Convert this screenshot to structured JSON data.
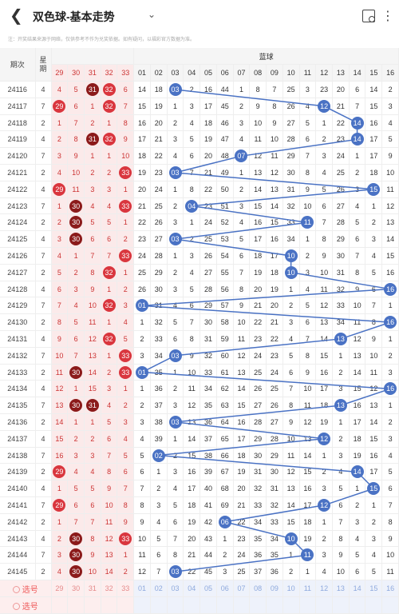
{
  "header": {
    "title": "双色球-基本走势",
    "back_icon": "back-icon",
    "share_icon": "share-icon",
    "more_icon": "more-icon"
  },
  "notice": "注：开奖结果来源于网络，仅供参考不作为兑奖依据。如有疑问，以福彩官方数据为准。",
  "columns": {
    "period": "期次",
    "week": "星期",
    "red": [
      "29",
      "30",
      "31",
      "32",
      "33"
    ],
    "blue_label": "蓝球",
    "blue": [
      "01",
      "02",
      "03",
      "04",
      "05",
      "06",
      "07",
      "08",
      "09",
      "10",
      "11",
      "12",
      "13",
      "14",
      "15",
      "16"
    ]
  },
  "rows": [
    {
      "p": "24116",
      "w": "4",
      "r": [
        "4",
        "5",
        "31",
        "32",
        "6"
      ],
      "b": [
        "14",
        "18",
        "03",
        "2",
        "16",
        "44",
        "1",
        "8",
        "7",
        "25",
        "3",
        "23",
        "20",
        "6",
        "14",
        "2"
      ],
      "hr": [
        2,
        3
      ],
      "hb": 3
    },
    {
      "p": "24117",
      "w": "7",
      "r": [
        "29",
        "6",
        "1",
        "32",
        "7"
      ],
      "b": [
        "15",
        "19",
        "1",
        "3",
        "17",
        "45",
        "2",
        "9",
        "8",
        "26",
        "4",
        "12",
        "21",
        "7",
        "15",
        "3"
      ],
      "hr": [
        0,
        3
      ],
      "hb": 12
    },
    {
      "p": "24118",
      "w": "2",
      "r": [
        "1",
        "7",
        "2",
        "1",
        "8"
      ],
      "b": [
        "16",
        "20",
        "2",
        "4",
        "18",
        "46",
        "3",
        "10",
        "9",
        "27",
        "5",
        "1",
        "22",
        "14",
        "16",
        "4"
      ],
      "hr": [],
      "hb": 14
    },
    {
      "p": "24119",
      "w": "4",
      "r": [
        "2",
        "8",
        "31",
        "32",
        "9"
      ],
      "b": [
        "17",
        "21",
        "3",
        "5",
        "19",
        "47",
        "4",
        "11",
        "10",
        "28",
        "6",
        "2",
        "23",
        "14",
        "17",
        "5"
      ],
      "hr": [
        2,
        3
      ],
      "hb": 14
    },
    {
      "p": "24120",
      "w": "7",
      "r": [
        "3",
        "9",
        "1",
        "1",
        "10"
      ],
      "b": [
        "18",
        "22",
        "4",
        "6",
        "20",
        "48",
        "07",
        "12",
        "11",
        "29",
        "7",
        "3",
        "24",
        "1",
        "17",
        "9"
      ],
      "hr": [],
      "hb": 7
    },
    {
      "p": "24121",
      "w": "2",
      "r": [
        "4",
        "10",
        "2",
        "2",
        "33"
      ],
      "b": [
        "19",
        "23",
        "03",
        "7",
        "21",
        "49",
        "1",
        "13",
        "12",
        "30",
        "8",
        "4",
        "25",
        "2",
        "18",
        "10"
      ],
      "hr": [
        4
      ],
      "hb": 3
    },
    {
      "p": "24122",
      "w": "4",
      "r": [
        "29",
        "11",
        "3",
        "3",
        "1"
      ],
      "b": [
        "20",
        "24",
        "1",
        "8",
        "22",
        "50",
        "2",
        "14",
        "13",
        "31",
        "9",
        "5",
        "26",
        "3",
        "15",
        "11"
      ],
      "hr": [
        0
      ],
      "hb": 15
    },
    {
      "p": "24123",
      "w": "7",
      "r": [
        "1",
        "30",
        "4",
        "4",
        "33"
      ],
      "b": [
        "21",
        "25",
        "2",
        "04",
        "23",
        "51",
        "3",
        "15",
        "14",
        "32",
        "10",
        "6",
        "27",
        "4",
        "1",
        "12"
      ],
      "hr": [
        1,
        4
      ],
      "hb": 4
    },
    {
      "p": "24124",
      "w": "2",
      "r": [
        "2",
        "30",
        "5",
        "5",
        "1"
      ],
      "b": [
        "22",
        "26",
        "3",
        "1",
        "24",
        "52",
        "4",
        "16",
        "15",
        "33",
        "11",
        "7",
        "28",
        "5",
        "2",
        "13"
      ],
      "hr": [
        1
      ],
      "hb": 11
    },
    {
      "p": "24125",
      "w": "4",
      "r": [
        "3",
        "30",
        "6",
        "6",
        "2"
      ],
      "b": [
        "23",
        "27",
        "03",
        "2",
        "25",
        "53",
        "5",
        "17",
        "16",
        "34",
        "1",
        "8",
        "29",
        "6",
        "3",
        "14"
      ],
      "hr": [
        1
      ],
      "hb": 3
    },
    {
      "p": "24126",
      "w": "7",
      "r": [
        "4",
        "1",
        "7",
        "7",
        "33"
      ],
      "b": [
        "24",
        "28",
        "1",
        "3",
        "26",
        "54",
        "6",
        "18",
        "17",
        "10",
        "2",
        "9",
        "30",
        "7",
        "4",
        "15"
      ],
      "hr": [
        4
      ],
      "hb": 10
    },
    {
      "p": "24127",
      "w": "2",
      "r": [
        "5",
        "2",
        "8",
        "32",
        "1"
      ],
      "b": [
        "25",
        "29",
        "2",
        "4",
        "27",
        "55",
        "7",
        "19",
        "18",
        "10",
        "3",
        "10",
        "31",
        "8",
        "5",
        "16"
      ],
      "hr": [
        3
      ],
      "hb": 10
    },
    {
      "p": "24128",
      "w": "4",
      "r": [
        "6",
        "3",
        "9",
        "1",
        "2"
      ],
      "b": [
        "26",
        "30",
        "3",
        "5",
        "28",
        "56",
        "8",
        "20",
        "19",
        "1",
        "4",
        "11",
        "32",
        "9",
        "6",
        "16"
      ],
      "hr": [],
      "hb": 16
    },
    {
      "p": "24129",
      "w": "7",
      "r": [
        "7",
        "4",
        "10",
        "32",
        "3"
      ],
      "b": [
        "01",
        "31",
        "4",
        "6",
        "29",
        "57",
        "9",
        "21",
        "20",
        "2",
        "5",
        "12",
        "33",
        "10",
        "7",
        "1"
      ],
      "hr": [
        3
      ],
      "hb": 1
    },
    {
      "p": "24130",
      "w": "2",
      "r": [
        "8",
        "5",
        "11",
        "1",
        "4"
      ],
      "b": [
        "1",
        "32",
        "5",
        "7",
        "30",
        "58",
        "10",
        "22",
        "21",
        "3",
        "6",
        "13",
        "34",
        "11",
        "8",
        "16"
      ],
      "hr": [],
      "hb": 16
    },
    {
      "p": "24131",
      "w": "4",
      "r": [
        "9",
        "6",
        "12",
        "32",
        "5"
      ],
      "b": [
        "2",
        "33",
        "6",
        "8",
        "31",
        "59",
        "11",
        "23",
        "22",
        "4",
        "7",
        "14",
        "13",
        "12",
        "9",
        "1"
      ],
      "hr": [
        3
      ],
      "hb": 13
    },
    {
      "p": "24132",
      "w": "7",
      "r": [
        "10",
        "7",
        "13",
        "1",
        "33"
      ],
      "b": [
        "3",
        "34",
        "03",
        "9",
        "32",
        "60",
        "12",
        "24",
        "23",
        "5",
        "8",
        "15",
        "1",
        "13",
        "10",
        "2"
      ],
      "hr": [
        4
      ],
      "hb": 3
    },
    {
      "p": "24133",
      "w": "2",
      "r": [
        "11",
        "30",
        "14",
        "2",
        "33"
      ],
      "b": [
        "01",
        "35",
        "1",
        "10",
        "33",
        "61",
        "13",
        "25",
        "24",
        "6",
        "9",
        "16",
        "2",
        "14",
        "11",
        "3"
      ],
      "hr": [
        1,
        4
      ],
      "hb": 1
    },
    {
      "p": "24134",
      "w": "4",
      "r": [
        "12",
        "1",
        "15",
        "3",
        "1"
      ],
      "b": [
        "1",
        "36",
        "2",
        "11",
        "34",
        "62",
        "14",
        "26",
        "25",
        "7",
        "10",
        "17",
        "3",
        "15",
        "12",
        "16"
      ],
      "hr": [],
      "hb": 16
    },
    {
      "p": "24135",
      "w": "7",
      "r": [
        "13",
        "30",
        "31",
        "4",
        "2"
      ],
      "b": [
        "2",
        "37",
        "3",
        "12",
        "35",
        "63",
        "15",
        "27",
        "26",
        "8",
        "11",
        "18",
        "13",
        "16",
        "13",
        "1"
      ],
      "hr": [
        1,
        2
      ],
      "hb": 13
    },
    {
      "p": "24136",
      "w": "2",
      "r": [
        "14",
        "1",
        "1",
        "5",
        "3"
      ],
      "b": [
        "3",
        "38",
        "03",
        "13",
        "36",
        "64",
        "16",
        "28",
        "27",
        "9",
        "12",
        "19",
        "1",
        "17",
        "14",
        "2"
      ],
      "hr": [],
      "hb": 3
    },
    {
      "p": "24137",
      "w": "4",
      "r": [
        "15",
        "2",
        "2",
        "6",
        "4"
      ],
      "b": [
        "4",
        "39",
        "1",
        "14",
        "37",
        "65",
        "17",
        "29",
        "28",
        "10",
        "13",
        "12",
        "2",
        "18",
        "15",
        "3"
      ],
      "hr": [],
      "hb": 12
    },
    {
      "p": "24138",
      "w": "7",
      "r": [
        "16",
        "3",
        "3",
        "7",
        "5"
      ],
      "b": [
        "5",
        "02",
        "2",
        "15",
        "38",
        "66",
        "18",
        "30",
        "29",
        "11",
        "14",
        "1",
        "3",
        "19",
        "16",
        "4"
      ],
      "hr": [],
      "hb": 2
    },
    {
      "p": "24139",
      "w": "2",
      "r": [
        "29",
        "4",
        "4",
        "8",
        "6"
      ],
      "b": [
        "6",
        "1",
        "3",
        "16",
        "39",
        "67",
        "19",
        "31",
        "30",
        "12",
        "15",
        "2",
        "4",
        "14",
        "17",
        "5"
      ],
      "hr": [
        0
      ],
      "hb": 14
    },
    {
      "p": "24140",
      "w": "4",
      "r": [
        "1",
        "5",
        "5",
        "9",
        "7"
      ],
      "b": [
        "7",
        "2",
        "4",
        "17",
        "40",
        "68",
        "20",
        "32",
        "31",
        "13",
        "16",
        "3",
        "5",
        "1",
        "15",
        "6"
      ],
      "hr": [],
      "hb": 15
    },
    {
      "p": "24141",
      "w": "7",
      "r": [
        "29",
        "6",
        "6",
        "10",
        "8"
      ],
      "b": [
        "8",
        "3",
        "5",
        "18",
        "41",
        "69",
        "21",
        "33",
        "32",
        "14",
        "17",
        "12",
        "6",
        "2",
        "1",
        "7"
      ],
      "hr": [
        0
      ],
      "hb": 12
    },
    {
      "p": "24142",
      "w": "2",
      "r": [
        "1",
        "7",
        "7",
        "11",
        "9"
      ],
      "b": [
        "9",
        "4",
        "6",
        "19",
        "42",
        "06",
        "22",
        "34",
        "33",
        "15",
        "18",
        "1",
        "7",
        "3",
        "2",
        "8"
      ],
      "hr": [],
      "hb": 6
    },
    {
      "p": "24143",
      "w": "4",
      "r": [
        "2",
        "30",
        "8",
        "12",
        "33"
      ],
      "b": [
        "10",
        "5",
        "7",
        "20",
        "43",
        "1",
        "23",
        "35",
        "34",
        "10",
        "19",
        "2",
        "8",
        "4",
        "3",
        "9"
      ],
      "hr": [
        1,
        4
      ],
      "hb": 10
    },
    {
      "p": "24144",
      "w": "7",
      "r": [
        "3",
        "30",
        "9",
        "13",
        "1"
      ],
      "b": [
        "11",
        "6",
        "8",
        "21",
        "44",
        "2",
        "24",
        "36",
        "35",
        "1",
        "11",
        "3",
        "9",
        "5",
        "4",
        "10"
      ],
      "hr": [
        1
      ],
      "hb": 11
    },
    {
      "p": "24145",
      "w": "2",
      "r": [
        "4",
        "30",
        "10",
        "14",
        "2"
      ],
      "b": [
        "12",
        "7",
        "03",
        "22",
        "45",
        "3",
        "25",
        "37",
        "36",
        "2",
        "1",
        "4",
        "10",
        "6",
        "5",
        "11"
      ],
      "hr": [
        1
      ],
      "hb": 3
    }
  ],
  "select_rows": [
    {
      "label": "选号",
      "r": [
        "29",
        "30",
        "31",
        "32",
        "33"
      ],
      "b": [
        "01",
        "02",
        "03",
        "04",
        "05",
        "06",
        "07",
        "08",
        "09",
        "10",
        "11",
        "12",
        "13",
        "14",
        "15",
        "16"
      ]
    },
    {
      "label": "选号"
    }
  ]
}
